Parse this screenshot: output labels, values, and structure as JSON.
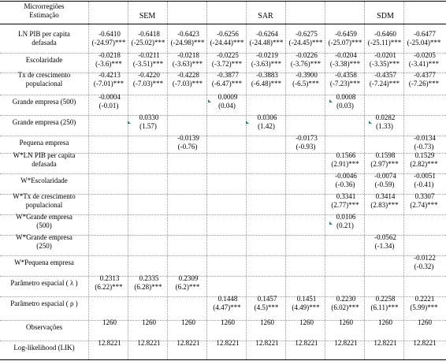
{
  "header": {
    "stub_line1": "Microrregiões",
    "stub_line2": "Estimação",
    "groups": [
      "SEM",
      "SAR",
      "SDM"
    ]
  },
  "rows": [
    {
      "label": [
        "LN PIB per capita",
        "defasada"
      ],
      "coef": [
        "-0.6410",
        "-0.6418",
        "-0.6423",
        "-0.6256",
        "-0.6264",
        "-0.6275",
        "-0.6459",
        "-0.6460",
        "-0.6477"
      ],
      "stat": [
        "(-24.97)***",
        "(-25.02)***",
        "(-24.98)***",
        "(-24.44)***",
        "(-24.48)***",
        "(-24.45)***",
        "(-25.07)***",
        "(-25.11)***",
        "(-25.04)***"
      ]
    },
    {
      "label": [
        "Escolaridade"
      ],
      "coef": [
        "-0.0218",
        "-0.0211",
        "-0.0218",
        "-0.0225",
        "-0.0219",
        "-0.0226",
        "-0.0204",
        "-0.0201",
        "-0.0205"
      ],
      "stat": [
        "(-3.6)***",
        "(-3.51)***",
        "(-3.63)***",
        "(-3.72)***",
        "(-3.63)***",
        "(-3.76)***",
        "(-3.38)***",
        "(-3.35)***",
        "(-3.41)***"
      ]
    },
    {
      "label": [
        "Tx de crescimento",
        "populacional"
      ],
      "coef": [
        "-0.4213",
        "-0.4220",
        "-0.4228",
        "-0.3877",
        "-0.3883",
        "-0.3900",
        "-0.4358",
        "-0.4357",
        "-0.4377"
      ],
      "stat": [
        "(-7.01)***",
        "(-7.03)***",
        "(-7.03)***",
        "(-6.47)***",
        "(-6.48)***",
        "(-6.5)***",
        "(-7.23)***",
        "(-7.24)***",
        "(-7.26)***"
      ]
    },
    {
      "label": [
        "Grande empresa (500)"
      ],
      "coef": [
        "-0.0004",
        "",
        "",
        "0.0009",
        "",
        "",
        "0.0008",
        "",
        ""
      ],
      "stat": [
        "(-0.01)",
        "",
        "",
        "(0.04)",
        "",
        "",
        "(0.03)",
        "",
        ""
      ]
    },
    {
      "label": [
        "Grande empresa (250)"
      ],
      "coef": [
        "",
        "0.0330",
        "",
        "",
        "0.0306",
        "",
        "",
        "0.0282",
        ""
      ],
      "stat": [
        "",
        "(1.57)",
        "",
        "",
        "(1.42)",
        "",
        "",
        "(1.33)",
        ""
      ]
    },
    {
      "label": [
        "Pequena empresa"
      ],
      "coef": [
        "",
        "",
        "-0.0139",
        "",
        "",
        "-0.0173",
        "",
        "",
        "-0.0134"
      ],
      "stat": [
        "",
        "",
        "(-0.76)",
        "",
        "",
        "(-0.93)",
        "",
        "",
        "(-0.73)"
      ]
    },
    {
      "label": [
        "W*LN PIB per capita",
        "defasada"
      ],
      "coef": [
        "",
        "",
        "",
        "",
        "",
        "",
        "0.1566",
        "0.1598",
        "0.1529"
      ],
      "stat": [
        "",
        "",
        "",
        "",
        "",
        "",
        "(2.91)***",
        "(2.97)***",
        "(2.82)***"
      ]
    },
    {
      "label": [
        "W*Escolaridade"
      ],
      "coef": [
        "",
        "",
        "",
        "",
        "",
        "",
        "-0.0046",
        "-0.0074",
        "-0.0051"
      ],
      "stat": [
        "",
        "",
        "",
        "",
        "",
        "",
        "(-0.36)",
        "(-0.59)",
        "(-0.41)"
      ]
    },
    {
      "label": [
        "W*Tx de crescimento",
        "populacional"
      ],
      "coef": [
        "",
        "",
        "",
        "",
        "",
        "",
        "0.3341",
        "0.3414",
        "0.3307"
      ],
      "stat": [
        "",
        "",
        "",
        "",
        "",
        "",
        "(2.77)***",
        "(2.83)***",
        "(2.74)***"
      ]
    },
    {
      "label": [
        "W*Grande empresa",
        "(500)"
      ],
      "coef": [
        "",
        "",
        "",
        "",
        "",
        "",
        "0.0106",
        "",
        ""
      ],
      "stat": [
        "",
        "",
        "",
        "",
        "",
        "",
        "(0.21)",
        "",
        ""
      ]
    },
    {
      "label": [
        "W*Grande empresa",
        "(250)"
      ],
      "coef": [
        "",
        "",
        "",
        "",
        "",
        "",
        "",
        "-0.0562",
        ""
      ],
      "stat": [
        "",
        "",
        "",
        "",
        "",
        "",
        "",
        "(-1.34)",
        ""
      ]
    },
    {
      "label": [
        "W*Pequena empresa"
      ],
      "coef": [
        "",
        "",
        "",
        "",
        "",
        "",
        "",
        "",
        "-0.0122"
      ],
      "stat": [
        "",
        "",
        "",
        "",
        "",
        "",
        "",
        "",
        "(-0.32)"
      ]
    },
    {
      "label": [
        "Parâmetro espacial ( λ )"
      ],
      "coef": [
        "0.2313",
        "0.2335",
        "0.2309",
        "",
        "",
        "",
        "",
        "",
        ""
      ],
      "stat": [
        "(6.22)***",
        "(6.28)***",
        "(6.2)***",
        "",
        "",
        "",
        "",
        "",
        ""
      ]
    },
    {
      "label": [
        "Parâmetro espacial ( ρ )"
      ],
      "coef": [
        "",
        "",
        "",
        "0.1448",
        "0.1457",
        "0.1451",
        "0.2230",
        "0.2258",
        "0.2221"
      ],
      "stat": [
        "",
        "",
        "",
        "(4.47)***",
        "(4.5)***",
        "(4.49)***",
        "(6.02)***",
        "(6.11)***",
        "(5.99)***"
      ]
    },
    {
      "label": [
        "Observações"
      ],
      "coef": [
        "1260",
        "1260",
        "1260",
        "1260",
        "1260",
        "1260",
        "1260",
        "1260",
        "1260"
      ],
      "stat": [
        "",
        "",
        "",
        "",
        "",
        "",
        "",
        "",
        ""
      ]
    },
    {
      "label": [
        "Log-likelihood (LIK)"
      ],
      "coef": [
        "12.8221",
        "12.8221",
        "12.8221",
        "12.8221",
        "12.8221",
        "12.8221",
        "12.8221",
        "12.8221",
        "12.8221"
      ],
      "stat": [
        "",
        "",
        "",
        "",
        "",
        "",
        "",
        "",
        ""
      ]
    }
  ],
  "colors": {
    "marker": "#2e8b57",
    "rule": "#000000",
    "dotted": "#9a9a9a"
  }
}
